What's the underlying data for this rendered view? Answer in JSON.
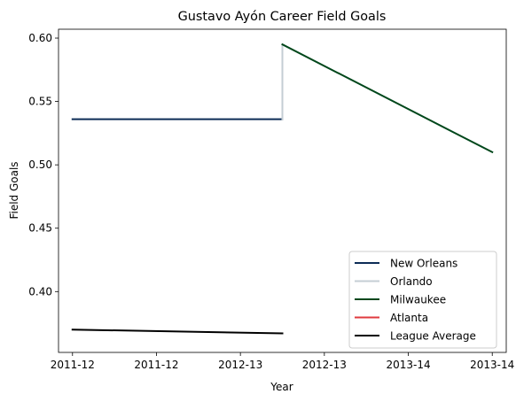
{
  "chart_data": {
    "type": "line",
    "title": "Gustavo Ayón Career Field Goals",
    "xlabel": "Year",
    "ylabel": "Field Goals",
    "xlim": [
      -0.1,
      3.1
    ],
    "ylim": [
      0.352,
      0.607
    ],
    "x_ticks": [
      {
        "pos": 0.0,
        "label": "2011-12"
      },
      {
        "pos": 0.6,
        "label": "2011-12"
      },
      {
        "pos": 1.2,
        "label": "2012-13"
      },
      {
        "pos": 1.8,
        "label": "2012-13"
      },
      {
        "pos": 2.4,
        "label": "2013-14"
      },
      {
        "pos": 3.0,
        "label": "2013-14"
      }
    ],
    "y_ticks": [
      {
        "value": 0.4,
        "label": "0.40"
      },
      {
        "value": 0.45,
        "label": "0.45"
      },
      {
        "value": 0.5,
        "label": "0.50"
      },
      {
        "value": 0.55,
        "label": "0.55"
      },
      {
        "value": 0.6,
        "label": "0.60"
      }
    ],
    "series": [
      {
        "name": "New Orleans",
        "color": "#0C2C56",
        "points": [
          [
            0.0,
            0.536
          ],
          [
            1.5,
            0.536
          ]
        ]
      },
      {
        "name": "Orlando",
        "color": "#C4CED4",
        "points": [
          [
            1.5,
            0.536
          ],
          [
            1.5,
            0.595
          ]
        ]
      },
      {
        "name": "Milwaukee",
        "color": "#00471B",
        "points": [
          [
            1.5,
            0.595
          ],
          [
            3.0,
            0.51
          ]
        ]
      },
      {
        "name": "Atlanta",
        "color": "#E03A3E",
        "points": []
      },
      {
        "name": "League Average",
        "color": "#000000",
        "points": [
          [
            0.0,
            0.37
          ],
          [
            1.5,
            0.367
          ]
        ]
      }
    ],
    "grid": false,
    "legend": "lower-right"
  }
}
